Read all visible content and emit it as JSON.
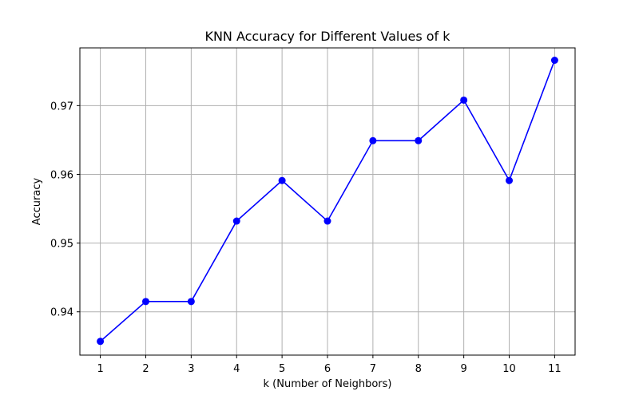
{
  "chart_data": {
    "type": "line",
    "title": "KNN Accuracy for Different Values of k",
    "xlabel": "k (Number of Neighbors)",
    "ylabel": "Accuracy",
    "x": [
      1,
      2,
      3,
      4,
      5,
      6,
      7,
      8,
      9,
      10,
      11
    ],
    "x_ticks": [
      "1",
      "2",
      "3",
      "4",
      "5",
      "6",
      "7",
      "8",
      "9",
      "10",
      "11"
    ],
    "y_ticks": [
      "0.94",
      "0.95",
      "0.96",
      "0.97"
    ],
    "y_tick_values": [
      0.94,
      0.95,
      0.96,
      0.97
    ],
    "xlim": [
      0.55,
      11.45
    ],
    "ylim": [
      0.9337,
      0.9784
    ],
    "grid": true,
    "series": [
      {
        "values": [
          0.9357,
          0.9415,
          0.9415,
          0.9532,
          0.9591,
          0.9532,
          0.9649,
          0.9649,
          0.9708,
          0.9591,
          0.9766
        ],
        "color": "#0000ff",
        "marker": "circle"
      }
    ]
  }
}
